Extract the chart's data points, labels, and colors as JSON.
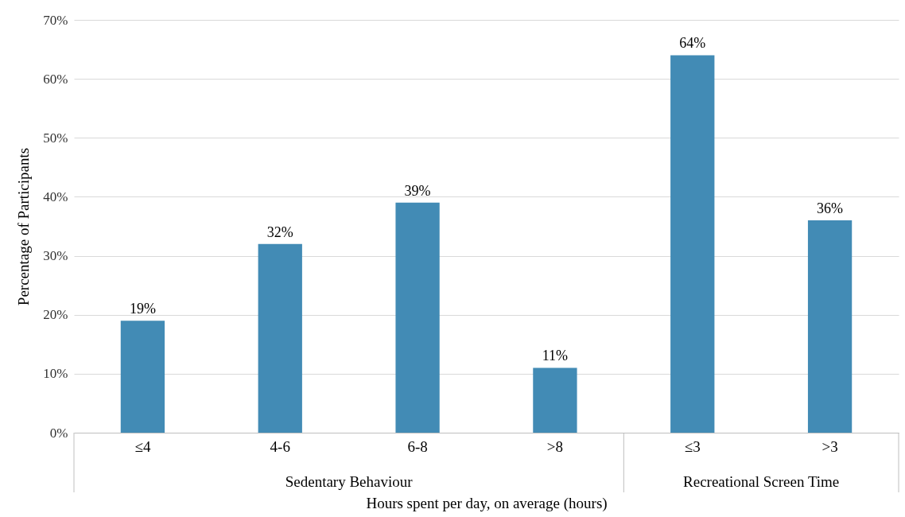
{
  "chart_data": {
    "type": "bar",
    "xlabel": "Hours spent per day, on average (hours)",
    "ylabel": "Percentage of Participants",
    "categories": [
      "≤4",
      "4-6",
      "6-8",
      ">8",
      "≤3",
      ">3"
    ],
    "values": [
      19,
      32,
      39,
      11,
      64,
      36
    ],
    "color": "#428bb5",
    "value_labels": [
      "19%",
      "32%",
      "39%",
      "11%",
      "64%",
      "36%"
    ],
    "ylim": [
      0,
      70
    ],
    "yticks": [
      {
        "value": 0,
        "label": "0%"
      },
      {
        "value": 10,
        "label": "10%"
      },
      {
        "value": 20,
        "label": "20%"
      },
      {
        "value": 30,
        "label": "30%"
      },
      {
        "value": 40,
        "label": "40%"
      },
      {
        "value": 50,
        "label": "50%"
      },
      {
        "value": 60,
        "label": "60%"
      },
      {
        "value": 70,
        "label": "70%"
      }
    ],
    "grid": "y",
    "annotations": [
      "Sedentary Behaviour",
      "Recreational Screen Time"
    ]
  }
}
